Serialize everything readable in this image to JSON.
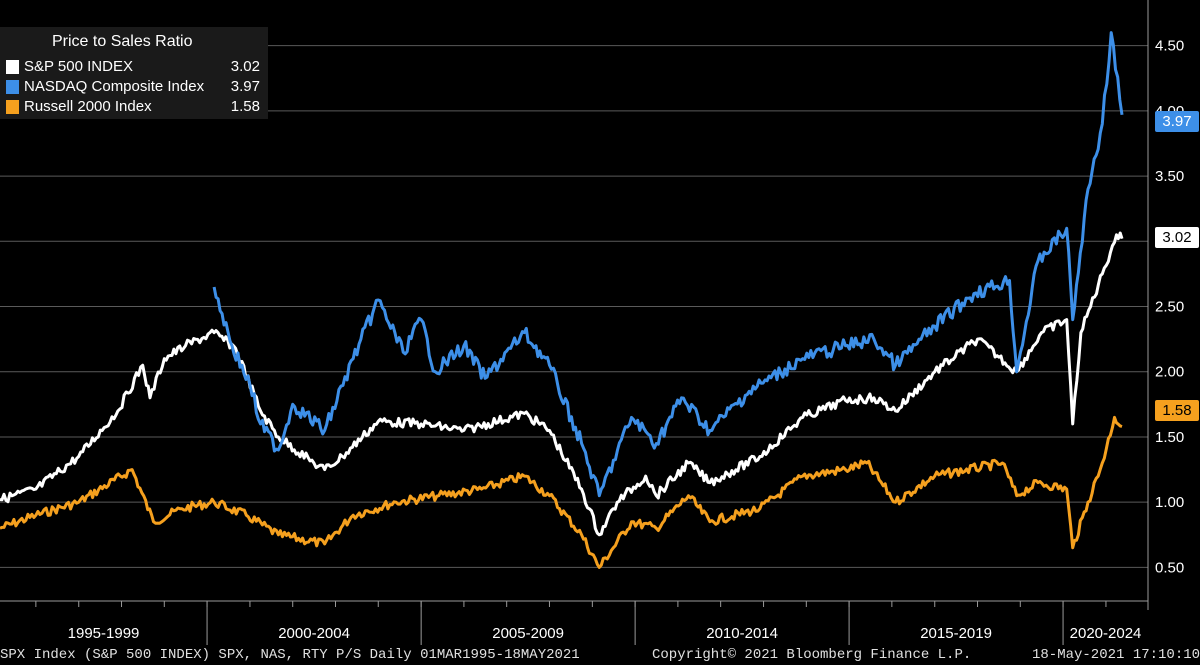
{
  "legend": {
    "title": "Price to Sales Ratio",
    "items": [
      {
        "name": "S&P 500 INDEX",
        "value": "3.02",
        "color": "#ffffff"
      },
      {
        "name": "NASDAQ Composite Index",
        "value": "3.97",
        "color": "#3d8fe8"
      },
      {
        "name": "Russell 2000 Index",
        "value": "1.58",
        "color": "#f5a01e"
      }
    ]
  },
  "last_values": {
    "spx": "3.02",
    "nas": "3.97",
    "rty": "1.58"
  },
  "footer": {
    "left": "SPX Index (S&P 500 INDEX) SPX, NAS, RTY P/S  Daily 01MAR1995-18MAY2021",
    "center": "Copyright© 2021 Bloomberg Finance L.P.",
    "right": "18-May-2021 17:10:10"
  },
  "chart_data": {
    "type": "line",
    "title": "Price to Sales Ratio",
    "x_range": [
      "1995-03-01",
      "2021-05-18"
    ],
    "x_tick_labels": [
      "1995-1999",
      "2000-2004",
      "2005-2009",
      "2010-2014",
      "2015-2019",
      "2020-2024"
    ],
    "ylim": [
      0.25,
      4.85
    ],
    "y_ticks": [
      "0.50",
      "1.00",
      "1.50",
      "2.00",
      "2.50",
      "3.00",
      "3.50",
      "4.00",
      "4.50"
    ],
    "y_tick_values": [
      0.5,
      1.0,
      1.5,
      2.0,
      2.5,
      3.0,
      3.5,
      4.0,
      4.5
    ],
    "grid": true,
    "legend_position": "top-left",
    "series": [
      {
        "name": "S&P 500 INDEX",
        "color": "#ffffff",
        "points": [
          [
            "1995-03-01",
            1.02
          ],
          [
            "1996-01-01",
            1.1
          ],
          [
            "1997-01-01",
            1.35
          ],
          [
            "1997-12-01",
            1.7
          ],
          [
            "1998-07-01",
            2.05
          ],
          [
            "1998-09-01",
            1.8
          ],
          [
            "1999-01-01",
            2.1
          ],
          [
            "1999-07-01",
            2.2
          ],
          [
            "2000-03-01",
            2.3
          ],
          [
            "2000-09-01",
            2.18
          ],
          [
            "2001-04-01",
            1.7
          ],
          [
            "2001-09-01",
            1.5
          ],
          [
            "2002-07-01",
            1.3
          ],
          [
            "2002-10-01",
            1.25
          ],
          [
            "2003-03-01",
            1.35
          ],
          [
            "2004-01-01",
            1.62
          ],
          [
            "2005-01-01",
            1.6
          ],
          [
            "2006-01-01",
            1.55
          ],
          [
            "2007-06-01",
            1.68
          ],
          [
            "2008-01-01",
            1.55
          ],
          [
            "2008-10-01",
            1.1
          ],
          [
            "2009-03-01",
            0.75
          ],
          [
            "2009-08-01",
            1.0
          ],
          [
            "2010-04-01",
            1.2
          ],
          [
            "2010-07-01",
            1.05
          ],
          [
            "2011-04-01",
            1.3
          ],
          [
            "2011-10-01",
            1.15
          ],
          [
            "2012-12-01",
            1.35
          ],
          [
            "2013-12-01",
            1.65
          ],
          [
            "2014-12-01",
            1.78
          ],
          [
            "2015-08-01",
            1.8
          ],
          [
            "2016-02-01",
            1.7
          ],
          [
            "2017-01-01",
            2.0
          ],
          [
            "2018-01-01",
            2.25
          ],
          [
            "2018-12-01",
            2.0
          ],
          [
            "2019-07-01",
            2.3
          ],
          [
            "2020-02-01",
            2.4
          ],
          [
            "2020-03-23",
            1.6
          ],
          [
            "2020-06-01",
            2.3
          ],
          [
            "2020-12-01",
            2.75
          ],
          [
            "2021-04-01",
            3.05
          ],
          [
            "2021-05-18",
            3.02
          ]
        ]
      },
      {
        "name": "NASDAQ Composite Index",
        "color": "#3d8fe8",
        "points": [
          [
            "2000-03-01",
            2.65
          ],
          [
            "2000-08-01",
            2.2
          ],
          [
            "2001-01-01",
            1.9
          ],
          [
            "2001-04-01",
            1.6
          ],
          [
            "2001-09-01",
            1.4
          ],
          [
            "2002-01-01",
            1.75
          ],
          [
            "2002-10-01",
            1.55
          ],
          [
            "2003-06-01",
            2.1
          ],
          [
            "2004-01-01",
            2.55
          ],
          [
            "2004-08-01",
            2.15
          ],
          [
            "2005-01-01",
            2.4
          ],
          [
            "2005-05-01",
            2.0
          ],
          [
            "2006-01-01",
            2.2
          ],
          [
            "2006-07-01",
            1.95
          ],
          [
            "2007-06-01",
            2.3
          ],
          [
            "2008-01-01",
            2.05
          ],
          [
            "2008-10-01",
            1.45
          ],
          [
            "2009-03-01",
            1.05
          ],
          [
            "2009-12-01",
            1.65
          ],
          [
            "2010-07-01",
            1.45
          ],
          [
            "2011-02-01",
            1.8
          ],
          [
            "2011-10-01",
            1.55
          ],
          [
            "2012-09-01",
            1.85
          ],
          [
            "2013-12-01",
            2.1
          ],
          [
            "2014-12-01",
            2.2
          ],
          [
            "2015-08-01",
            2.25
          ],
          [
            "2016-02-01",
            2.05
          ],
          [
            "2017-01-01",
            2.35
          ],
          [
            "2017-12-01",
            2.6
          ],
          [
            "2018-10-01",
            2.7
          ],
          [
            "2018-12-01",
            2.0
          ],
          [
            "2019-06-01",
            2.85
          ],
          [
            "2020-02-01",
            3.1
          ],
          [
            "2020-03-23",
            2.4
          ],
          [
            "2020-08-01",
            3.4
          ],
          [
            "2020-12-01",
            3.9
          ],
          [
            "2021-02-15",
            4.6
          ],
          [
            "2021-05-18",
            3.97
          ]
        ]
      },
      {
        "name": "Russell 2000 Index",
        "color": "#f5a01e",
        "points": [
          [
            "1995-03-01",
            0.8
          ],
          [
            "1996-01-01",
            0.9
          ],
          [
            "1997-01-01",
            1.0
          ],
          [
            "1998-04-01",
            1.25
          ],
          [
            "1998-10-01",
            0.85
          ],
          [
            "1999-06-01",
            0.95
          ],
          [
            "2000-03-01",
            1.0
          ],
          [
            "2000-12-01",
            0.9
          ],
          [
            "2001-09-01",
            0.75
          ],
          [
            "2002-10-01",
            0.68
          ],
          [
            "2003-06-01",
            0.9
          ],
          [
            "2004-06-01",
            1.0
          ],
          [
            "2005-06-01",
            1.05
          ],
          [
            "2006-06-01",
            1.1
          ],
          [
            "2007-06-01",
            1.2
          ],
          [
            "2008-01-01",
            1.05
          ],
          [
            "2008-10-01",
            0.75
          ],
          [
            "2009-03-01",
            0.5
          ],
          [
            "2009-12-01",
            0.85
          ],
          [
            "2010-07-01",
            0.8
          ],
          [
            "2011-04-01",
            1.05
          ],
          [
            "2011-10-01",
            0.85
          ],
          [
            "2012-12-01",
            0.95
          ],
          [
            "2013-12-01",
            1.2
          ],
          [
            "2014-12-01",
            1.25
          ],
          [
            "2015-06-01",
            1.3
          ],
          [
            "2016-02-01",
            1.0
          ],
          [
            "2017-01-01",
            1.2
          ],
          [
            "2018-08-01",
            1.3
          ],
          [
            "2018-12-01",
            1.05
          ],
          [
            "2019-06-01",
            1.15
          ],
          [
            "2020-02-01",
            1.1
          ],
          [
            "2020-03-23",
            0.65
          ],
          [
            "2020-08-01",
            1.0
          ],
          [
            "2020-12-01",
            1.3
          ],
          [
            "2021-03-15",
            1.65
          ],
          [
            "2021-05-18",
            1.58
          ]
        ]
      }
    ]
  }
}
